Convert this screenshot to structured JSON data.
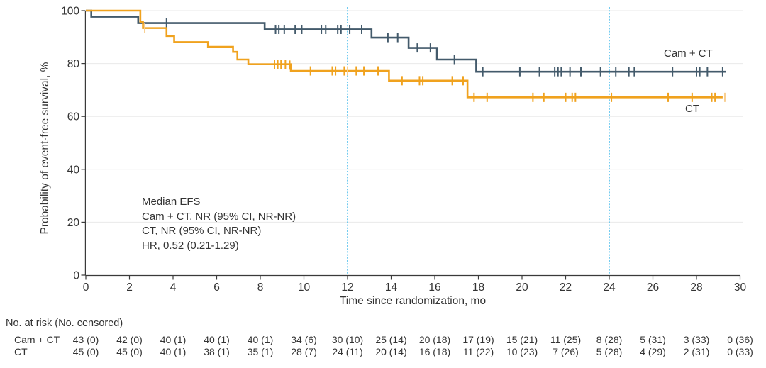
{
  "axes": {
    "y_label": "Probability of event-free survival, %",
    "x_label": "Time since randomization, mo"
  },
  "annotation": {
    "lines": [
      "Median EFS",
      "Cam + CT, NR (95% CI, NR-NR)",
      "CT, NR (95% CI, NR-NR)",
      "HR, 0.52 (0.21-1.29)"
    ]
  },
  "colors": {
    "cam_ct": "#435A6B",
    "ct": "#F0A21E",
    "ct_light": "#F8CF92",
    "refline": "#4FBEEC",
    "grid": "#EAEAEA",
    "axis": "#3A3A3A",
    "text": "#333333"
  },
  "chart_data": {
    "type": "line",
    "subtype": "kaplan_meier_step",
    "title": "",
    "xlabel": "Time since randomization, mo",
    "ylabel": "Probability of event-free survival, %",
    "xlim": [
      0,
      30
    ],
    "ylim": [
      0,
      100
    ],
    "x_ticks": [
      0,
      2,
      4,
      6,
      8,
      10,
      12,
      14,
      16,
      18,
      20,
      22,
      24,
      26,
      28,
      30
    ],
    "y_ticks": [
      0,
      20,
      40,
      60,
      80,
      100
    ],
    "reference_lines_x": [
      12,
      24
    ],
    "grid": "horizontal",
    "legend_position": "inline-right",
    "series": [
      {
        "name": "Cam + CT",
        "color_key": "cam_ct",
        "steps": [
          [
            0,
            100
          ],
          [
            0.25,
            97.7
          ],
          [
            2.4,
            95.3
          ],
          [
            8.2,
            92.9
          ],
          [
            13.1,
            89.8
          ],
          [
            14.8,
            85.9
          ],
          [
            16.1,
            81.5
          ],
          [
            17.9,
            76.9
          ]
        ],
        "end_x": 29.35,
        "censors": [
          [
            3.7,
            95.3
          ],
          [
            8.7,
            92.9
          ],
          [
            8.85,
            92.9
          ],
          [
            9.1,
            92.9
          ],
          [
            9.6,
            92.9
          ],
          [
            9.9,
            92.9
          ],
          [
            10.8,
            92.9
          ],
          [
            11.0,
            92.9
          ],
          [
            11.55,
            92.9
          ],
          [
            11.7,
            92.9
          ],
          [
            12.1,
            92.9
          ],
          [
            12.65,
            92.9
          ],
          [
            13.85,
            89.8
          ],
          [
            14.3,
            89.8
          ],
          [
            15.2,
            85.9
          ],
          [
            15.8,
            85.9
          ],
          [
            16.9,
            81.5
          ],
          [
            18.2,
            76.9
          ],
          [
            19.9,
            76.9
          ],
          [
            20.8,
            76.9
          ],
          [
            21.5,
            76.9
          ],
          [
            21.65,
            76.9
          ],
          [
            21.8,
            76.9
          ],
          [
            22.2,
            76.9
          ],
          [
            22.7,
            76.9
          ],
          [
            23.6,
            76.9
          ],
          [
            24.3,
            76.9
          ],
          [
            24.9,
            76.9
          ],
          [
            25.15,
            76.9
          ],
          [
            26.9,
            76.9
          ],
          [
            28.0,
            76.9
          ],
          [
            28.15,
            76.9
          ],
          [
            28.5,
            76.9
          ],
          [
            29.2,
            76.9
          ]
        ],
        "censors_light": []
      },
      {
        "name": "CT",
        "color_key": "ct",
        "steps": [
          [
            0,
            100
          ],
          [
            2.5,
            95.8
          ],
          [
            2.62,
            93.4
          ],
          [
            3.7,
            90.4
          ],
          [
            4.05,
            88.1
          ],
          [
            5.6,
            86.3
          ],
          [
            6.75,
            84.4
          ],
          [
            6.95,
            81.5
          ],
          [
            7.45,
            79.7
          ],
          [
            9.4,
            77.2
          ],
          [
            13.9,
            73.5
          ],
          [
            17.5,
            67.2
          ]
        ],
        "end_x": 29.2,
        "censors": [
          [
            8.65,
            79.7
          ],
          [
            8.8,
            79.7
          ],
          [
            8.95,
            79.7
          ],
          [
            9.15,
            79.7
          ],
          [
            9.35,
            79.4
          ],
          [
            10.3,
            77.2
          ],
          [
            11.3,
            77.2
          ],
          [
            11.45,
            77.2
          ],
          [
            11.85,
            77.2
          ],
          [
            12.4,
            77.2
          ],
          [
            12.75,
            77.2
          ],
          [
            13.4,
            77.2
          ],
          [
            14.5,
            73.5
          ],
          [
            15.3,
            73.5
          ],
          [
            15.45,
            73.5
          ],
          [
            16.8,
            73.5
          ],
          [
            17.3,
            73.5
          ],
          [
            17.8,
            67.2
          ],
          [
            18.4,
            67.2
          ],
          [
            20.5,
            67.2
          ],
          [
            21.0,
            67.2
          ],
          [
            22.0,
            67.2
          ],
          [
            22.3,
            67.2
          ],
          [
            22.45,
            67.2
          ],
          [
            24.1,
            67.2
          ],
          [
            26.7,
            67.2
          ],
          [
            27.8,
            67.2
          ],
          [
            28.7,
            67.2
          ],
          [
            28.85,
            67.2
          ]
        ],
        "censors_light": [
          [
            2.7,
            93.4
          ],
          [
            12.0,
            77.2
          ],
          [
            29.3,
            67.2
          ]
        ]
      }
    ]
  },
  "risk_table": {
    "header": "No. at risk (No. censored)",
    "times": [
      0,
      2,
      4,
      6,
      8,
      10,
      12,
      14,
      16,
      18,
      20,
      22,
      24,
      26,
      28,
      30
    ],
    "rows": [
      {
        "label": "Cam + CT",
        "values": [
          "43 (0)",
          "42 (0)",
          "40 (1)",
          "40 (1)",
          "40 (1)",
          "34 (6)",
          "30 (10)",
          "25 (14)",
          "20 (18)",
          "17 (19)",
          "15 (21)",
          "11 (25)",
          "8 (28)",
          "5 (31)",
          "3 (33)",
          "0 (36)"
        ]
      },
      {
        "label": "CT",
        "values": [
          "45 (0)",
          "45 (0)",
          "40 (1)",
          "38 (1)",
          "35 (1)",
          "28 (7)",
          "24 (11)",
          "20 (14)",
          "16 (18)",
          "11 (22)",
          "10 (23)",
          "7 (26)",
          "5 (28)",
          "4 (29)",
          "2 (31)",
          "0 (33)"
        ]
      }
    ]
  }
}
